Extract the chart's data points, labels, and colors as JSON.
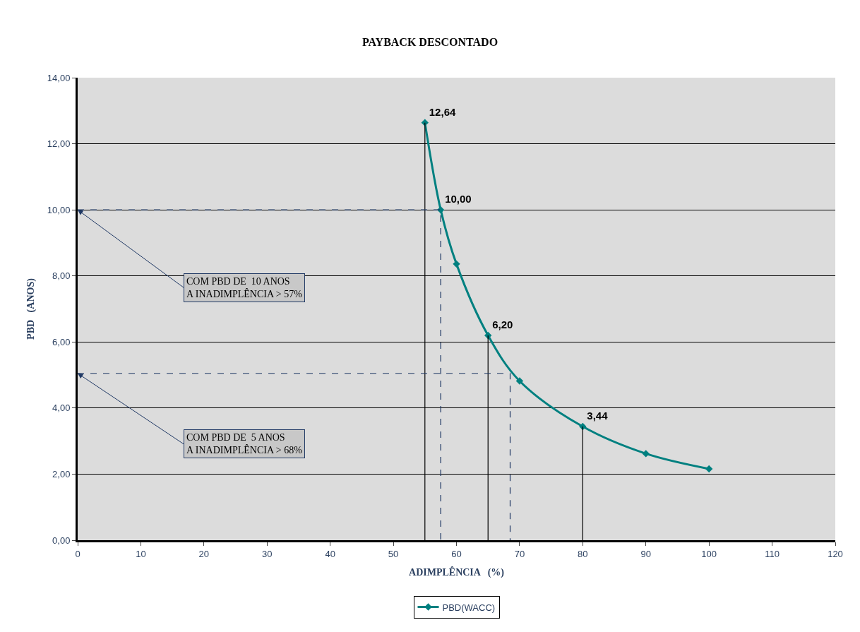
{
  "chart_data": {
    "type": "line",
    "title": "PAYBACK DESCONTADO",
    "xlabel": "ADIMPLÊNCIA   (%)",
    "ylabel": "PBD   (ANOS)",
    "x": [
      55,
      57.5,
      60,
      65,
      70,
      80,
      90,
      100
    ],
    "series": [
      {
        "name": "PBD(WACC)",
        "color": "#008080",
        "values": [
          12.64,
          10.0,
          8.36,
          6.2,
          4.82,
          3.44,
          2.62,
          2.16
        ],
        "value_labels": [
          "12,64",
          "10,00",
          null,
          "6,20",
          null,
          "3,44",
          null,
          null
        ],
        "marker": "diamond",
        "line_style": "solid"
      },
      {
        "type": "line",
        "color": "#000000",
        "x": [
          55,
          55
        ],
        "values": [
          12.64,
          0
        ],
        "marker": "none",
        "line_style": "solid"
      },
      {
        "type": "line",
        "color": "#000000",
        "x": [
          65,
          65
        ],
        "values": [
          6.2,
          0
        ],
        "marker": "none",
        "line_style": "solid"
      },
      {
        "type": "line",
        "color": "#000000",
        "x": [
          80,
          80
        ],
        "values": [
          3.44,
          0
        ],
        "marker": "none",
        "line_style": "solid"
      },
      {
        "type": "line",
        "color": "#1f3864",
        "x": [
          0,
          57.5,
          57.5
        ],
        "values": [
          10.0,
          10.0,
          0
        ],
        "marker": "none",
        "line_style": "dashed"
      },
      {
        "type": "line",
        "color": "#1f3864",
        "x": [
          0,
          68.5,
          68.5
        ],
        "values": [
          5.05,
          5.05,
          0
        ],
        "marker": "none",
        "line_style": "dashed"
      }
    ],
    "annotations": [
      {
        "text": "COM PBD DE  10 ANOS\nA INADIMPLÊNCIA > 57%",
        "x": 0,
        "y": 10.0
      },
      {
        "text": "COM PBD DE  5 ANOS\nA INADIMPLÊNCIA > 68%",
        "x": 0,
        "y": 5.05
      }
    ],
    "xlim": [
      0,
      120
    ],
    "xticks": [
      0,
      10,
      20,
      30,
      40,
      50,
      60,
      70,
      80,
      90,
      100,
      110,
      120
    ],
    "ylim": [
      0,
      14
    ],
    "yticks": [
      {
        "value": 0,
        "label": "0,00"
      },
      {
        "value": 2,
        "label": "2,00"
      },
      {
        "value": 4,
        "label": "4,00"
      },
      {
        "value": 6,
        "label": "6,00"
      },
      {
        "value": 8,
        "label": "8,00"
      },
      {
        "value": 10,
        "label": "10,00"
      },
      {
        "value": 12,
        "label": "12,00"
      },
      {
        "value": 14,
        "label": "14,00"
      }
    ],
    "grid": "y",
    "legend": "bottom"
  }
}
